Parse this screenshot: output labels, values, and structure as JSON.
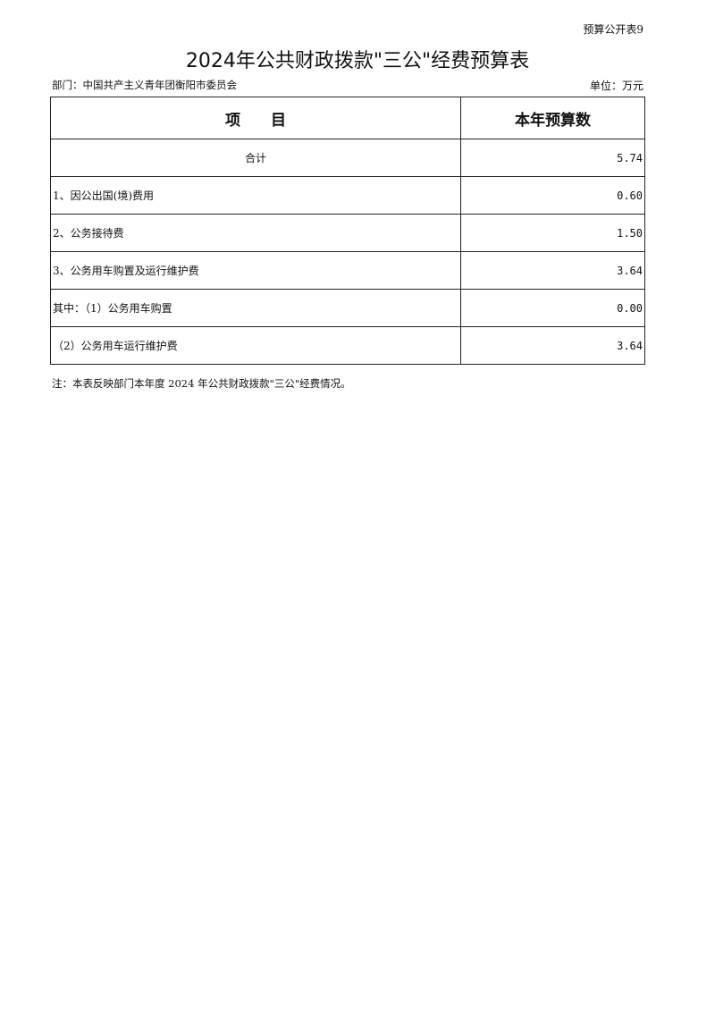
{
  "form_code": "预算公开表9",
  "title": "2024年公共财政拨款\"三公\"经费预算表",
  "department": "部门：中国共产主义青年团衡阳市委员会",
  "unit": "单位：万元",
  "table": {
    "headers": [
      "项　　目",
      "本年预算数"
    ],
    "rows": [
      {
        "item": "合计",
        "value": "5.74"
      },
      {
        "item": "1、因公出国(境)费用",
        "value": "0.60"
      },
      {
        "item": "2、公务接待费",
        "value": "1.50"
      },
      {
        "item": "3、公务用车购置及运行维护费",
        "value": "3.64"
      },
      {
        "item": "其中：（1）公务用车购置",
        "value": "0.00"
      },
      {
        "item": "（2）公务用车运行维护费",
        "value": "3.64"
      }
    ]
  },
  "note": "注：本表反映部门本年度 2024 年公共财政拨款\"三公\"经费情况。"
}
